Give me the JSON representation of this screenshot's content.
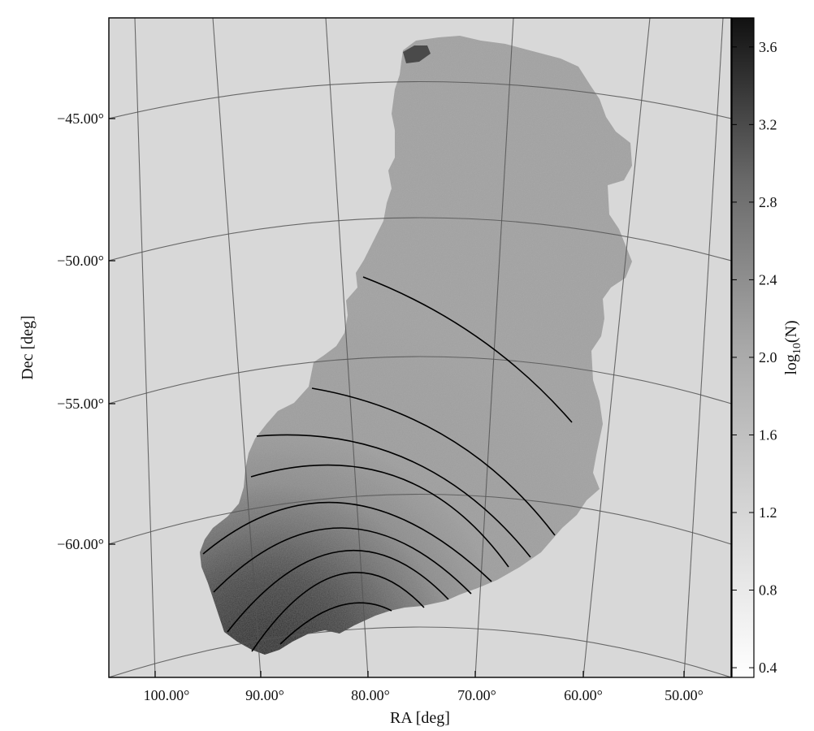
{
  "chart_data": {
    "type": "heatmap",
    "title": "",
    "xlabel": "RA [deg]",
    "ylabel": "Dec [deg]",
    "x_ticks": [
      "100.00°",
      "90.00°",
      "80.00°",
      "70.00°",
      "60.00°",
      "50.00°"
    ],
    "y_ticks": [
      "−45.00°",
      "−50.00°",
      "−55.00°",
      "−60.00°"
    ],
    "x_tick_values": [
      100,
      90,
      80,
      70,
      60,
      50
    ],
    "y_tick_values": [
      -45,
      -50,
      -55,
      -60
    ],
    "colorbar": {
      "label_base": "log",
      "label_sub": "10",
      "label_rest": "(N)",
      "ticks": [
        "0.4",
        "0.8",
        "1.2",
        "1.6",
        "2.0",
        "2.4",
        "2.8",
        "3.2",
        "3.6"
      ],
      "tick_values": [
        0.4,
        0.8,
        1.2,
        1.6,
        2.0,
        2.4,
        2.8,
        3.2,
        3.6
      ],
      "range": [
        0.35,
        3.75
      ],
      "colormap": "grayscale, white = low, black = high"
    },
    "background_color": "#d8d8d8",
    "footprint": "density map over RA ~54° to 96°, Dec ~-64° to -42°; densest toward the south-east corner (RA ~83°, Dec ~-64°)",
    "contours": "concentric black arcs centred near RA 83°, Dec -66°, marking rising density",
    "grid": true,
    "legend": "none"
  }
}
